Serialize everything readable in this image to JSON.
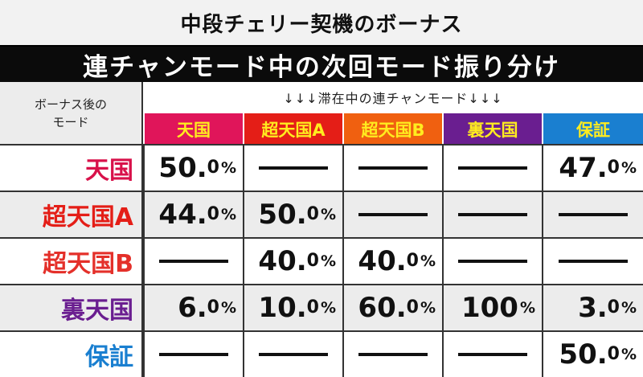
{
  "header": {
    "title": "中段チェリー契機のボーナス",
    "subtitle": "連チャンモード中の次回モード振り分け"
  },
  "table": {
    "row_header_label_line1": "ボーナス後の",
    "row_header_label_line2": "モード",
    "columns_caption": "↓↓↓滞在中の連チャンモード↓↓↓",
    "columns": [
      {
        "label": "天国",
        "bg": "#e0155a",
        "fg": "#ffec1f"
      },
      {
        "label": "超天国A",
        "bg": "#e41e17",
        "fg": "#ffec1f"
      },
      {
        "label": "超天国B",
        "bg": "#f06010",
        "fg": "#ffec1f"
      },
      {
        "label": "裏天国",
        "bg": "#6a1e90",
        "fg": "#ffec1f"
      },
      {
        "label": "保証",
        "bg": "#1a7fd0",
        "fg": "#ffec1f"
      }
    ],
    "rows": [
      {
        "label": "天国",
        "color": "#d8114a",
        "cells": [
          {
            "int": "50.",
            "dec": "0",
            "pct": "%"
          },
          null,
          null,
          null,
          {
            "int": "47.",
            "dec": "0",
            "pct": "%"
          }
        ]
      },
      {
        "label": "超天国A",
        "color": "#e41e17",
        "cells": [
          {
            "int": "44.",
            "dec": "0",
            "pct": "%"
          },
          {
            "int": "50.",
            "dec": "0",
            "pct": "%"
          },
          null,
          null,
          null
        ]
      },
      {
        "label": "超天国B",
        "color": "#e4302a",
        "cells": [
          null,
          {
            "int": "40.",
            "dec": "0",
            "pct": "%"
          },
          {
            "int": "40.",
            "dec": "0",
            "pct": "%"
          },
          null,
          null
        ]
      },
      {
        "label": "裏天国",
        "color": "#6a1e90",
        "cells": [
          {
            "int": "6.",
            "dec": "0",
            "pct": "%"
          },
          {
            "int": "10.",
            "dec": "0",
            "pct": "%"
          },
          {
            "int": "60.",
            "dec": "0",
            "pct": "%"
          },
          {
            "int": "100",
            "dec": "",
            "pct": "%"
          },
          {
            "int": "3.",
            "dec": "0",
            "pct": "%"
          }
        ]
      },
      {
        "label": "保証",
        "color": "#1a7fd0",
        "cells": [
          null,
          null,
          null,
          null,
          {
            "int": "50.",
            "dec": "0",
            "pct": "%"
          }
        ]
      }
    ]
  }
}
